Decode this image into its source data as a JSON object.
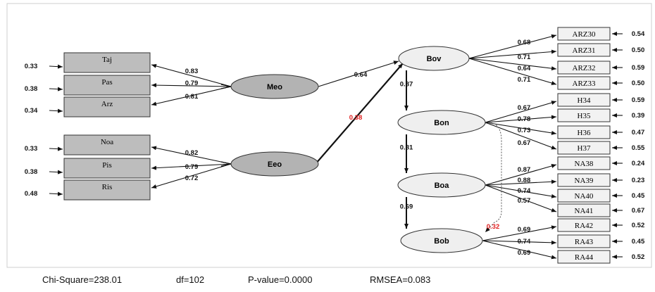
{
  "latents": [
    {
      "id": "Meo",
      "label": "Meo",
      "fill": "#b3b3b3"
    },
    {
      "id": "Eeo",
      "label": "Eeo",
      "fill": "#b3b3b3"
    },
    {
      "id": "Bov",
      "label": "Bov",
      "fill": "#efefef"
    },
    {
      "id": "Bon",
      "label": "Bon",
      "fill": "#efefef"
    },
    {
      "id": "Boa",
      "label": "Boa",
      "fill": "#efefef"
    },
    {
      "id": "Bob",
      "label": "Bob",
      "fill": "#efefef"
    }
  ],
  "left_indicators": [
    {
      "label": "Taj",
      "error": "0.33",
      "loading": "0.83",
      "factor": "Meo"
    },
    {
      "label": "Pas",
      "error": "0.38",
      "loading": "0.79",
      "factor": "Meo"
    },
    {
      "label": "Arz",
      "error": "0.34",
      "loading": "0.81",
      "factor": "Meo"
    },
    {
      "label": "Noa",
      "error": "0.33",
      "loading": "0.82",
      "factor": "Eeo"
    },
    {
      "label": "Pis",
      "error": "0.38",
      "loading": "0.79",
      "factor": "Eeo"
    },
    {
      "label": "Ris",
      "error": "0.48",
      "loading": "0.72",
      "factor": "Eeo"
    }
  ],
  "right_indicators": [
    {
      "label": "ARZ30",
      "loading": "0.68",
      "error": "0.54",
      "factor": "Bov"
    },
    {
      "label": "ARZ31",
      "loading": "0.71",
      "error": "0.50",
      "factor": "Bov"
    },
    {
      "label": "ARZ32",
      "loading": "0.64",
      "error": "0.59",
      "factor": "Bov"
    },
    {
      "label": "ARZ33",
      "loading": "0.71",
      "error": "0.50",
      "factor": "Bov"
    },
    {
      "label": "H34",
      "loading": "0.67",
      "error": "0.59",
      "factor": "Bon"
    },
    {
      "label": "H35",
      "loading": "0.78",
      "error": "0.39",
      "factor": "Bon"
    },
    {
      "label": "H36",
      "loading": "0.73",
      "error": "0.47",
      "factor": "Bon"
    },
    {
      "label": "H37",
      "loading": "0.67",
      "error": "0.55",
      "factor": "Bon"
    },
    {
      "label": "NA38",
      "loading": "0.87",
      "error": "0.24",
      "factor": "Boa"
    },
    {
      "label": "NA39",
      "loading": "0.88",
      "error": "0.23",
      "factor": "Boa"
    },
    {
      "label": "NA40",
      "loading": "0.74",
      "error": "0.45",
      "factor": "Boa"
    },
    {
      "label": "NA41",
      "loading": "0.57",
      "error": "0.67",
      "factor": "Boa"
    },
    {
      "label": "RA42",
      "loading": "0.69",
      "error": "0.52",
      "factor": "Bob"
    },
    {
      "label": "RA43",
      "loading": "0.74",
      "error": "0.45",
      "factor": "Bob"
    },
    {
      "label": "RA44",
      "loading": "0.69",
      "error": "0.52",
      "factor": "Bob"
    }
  ],
  "paths": [
    {
      "from": "Meo",
      "to": "Bov",
      "coef": "0.64"
    },
    {
      "from": "Eeo",
      "to": "Bov",
      "coef": "0.38",
      "highlight": true
    },
    {
      "from": "Bov",
      "to": "Bon",
      "coef": "0.87"
    },
    {
      "from": "Bon",
      "to": "Boa",
      "coef": "0.81"
    },
    {
      "from": "Boa",
      "to": "Bob",
      "coef": "0.69"
    },
    {
      "from": "Bon",
      "to": "Bob",
      "coef": "0.32",
      "highlight": true,
      "style": "dotted"
    }
  ],
  "fit": {
    "chi_square": "Chi-Square=238.01",
    "df": "df=102",
    "p_value": "P-value=0.0000",
    "rmsea": "RMSEA=0.083"
  },
  "colors": {
    "highlight": "#e02020",
    "line": "#111111",
    "indicator_left_fill": "#bdbdbd",
    "indicator_right_fill": "#f2f2f2"
  }
}
